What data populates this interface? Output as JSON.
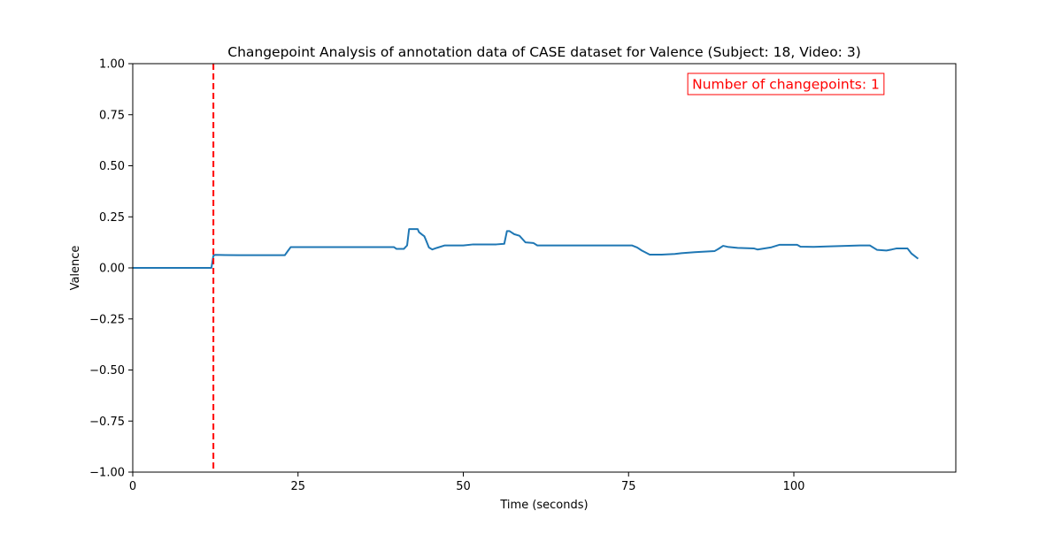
{
  "chart_data": {
    "type": "line",
    "title": "Changepoint Analysis of annotation data of CASE dataset for Valence (Subject: 18, Video: 3)",
    "xlabel": "Time (seconds)",
    "ylabel": "Valence",
    "xlim": [
      0,
      124.5
    ],
    "ylim": [
      -1.0,
      1.0
    ],
    "xticks": [
      0,
      25,
      50,
      75,
      100
    ],
    "xtick_labels": [
      "0",
      "25",
      "50",
      "75",
      "100"
    ],
    "yticks": [
      -1.0,
      -0.75,
      -0.5,
      -0.25,
      0.0,
      0.25,
      0.5,
      0.75,
      1.0
    ],
    "ytick_labels": [
      "−1.00",
      "−0.75",
      "−0.50",
      "−0.25",
      "0.00",
      "0.25",
      "0.50",
      "0.75",
      "1.00"
    ],
    "grid": false,
    "series": [
      {
        "color": "#1f77b4",
        "x": [
          0,
          11.9,
          12.2,
          12.5,
          14,
          16,
          18,
          20,
          23,
          23.4,
          23.9,
          26,
          30,
          35,
          39.5,
          39.9,
          41,
          41.5,
          41.8,
          42.2,
          43.1,
          43.3,
          43.8,
          44.1,
          44.3,
          44.8,
          45.3,
          46,
          47.2,
          50,
          51.5,
          55,
          56.2,
          56.6,
          57,
          57.7,
          58.5,
          59.4,
          60.6,
          61.2,
          65,
          70,
          75.5,
          76.3,
          77,
          78.2,
          80,
          82,
          83,
          85,
          88,
          88.6,
          89.3,
          90,
          91.5,
          94,
          94.5,
          96.5,
          97.8,
          100.5,
          101,
          103,
          105,
          110,
          111.5,
          112.6,
          114,
          114.8,
          115.5,
          117.2,
          117.8,
          118.8
        ],
        "values": [
          0,
          0,
          0.06,
          0.064,
          0.063,
          0.062,
          0.062,
          0.062,
          0.062,
          0.08,
          0.102,
          0.102,
          0.102,
          0.102,
          0.102,
          0.093,
          0.093,
          0.11,
          0.19,
          0.19,
          0.19,
          0.175,
          0.162,
          0.155,
          0.14,
          0.1,
          0.09,
          0.098,
          0.11,
          0.11,
          0.115,
          0.115,
          0.118,
          0.18,
          0.18,
          0.165,
          0.157,
          0.125,
          0.122,
          0.11,
          0.11,
          0.11,
          0.11,
          0.1,
          0.085,
          0.065,
          0.065,
          0.068,
          0.072,
          0.077,
          0.082,
          0.093,
          0.108,
          0.103,
          0.098,
          0.095,
          0.09,
          0.1,
          0.113,
          0.113,
          0.104,
          0.103,
          0.105,
          0.11,
          0.11,
          0.088,
          0.085,
          0.09,
          0.095,
          0.095,
          0.07,
          0.045
        ]
      }
    ],
    "changepoints": [
      12.2
    ],
    "changepoint_color": "#ff0000",
    "annotation": {
      "text": "Number of changepoints: 1",
      "color": "#ff0000",
      "placement": "top-right"
    }
  }
}
